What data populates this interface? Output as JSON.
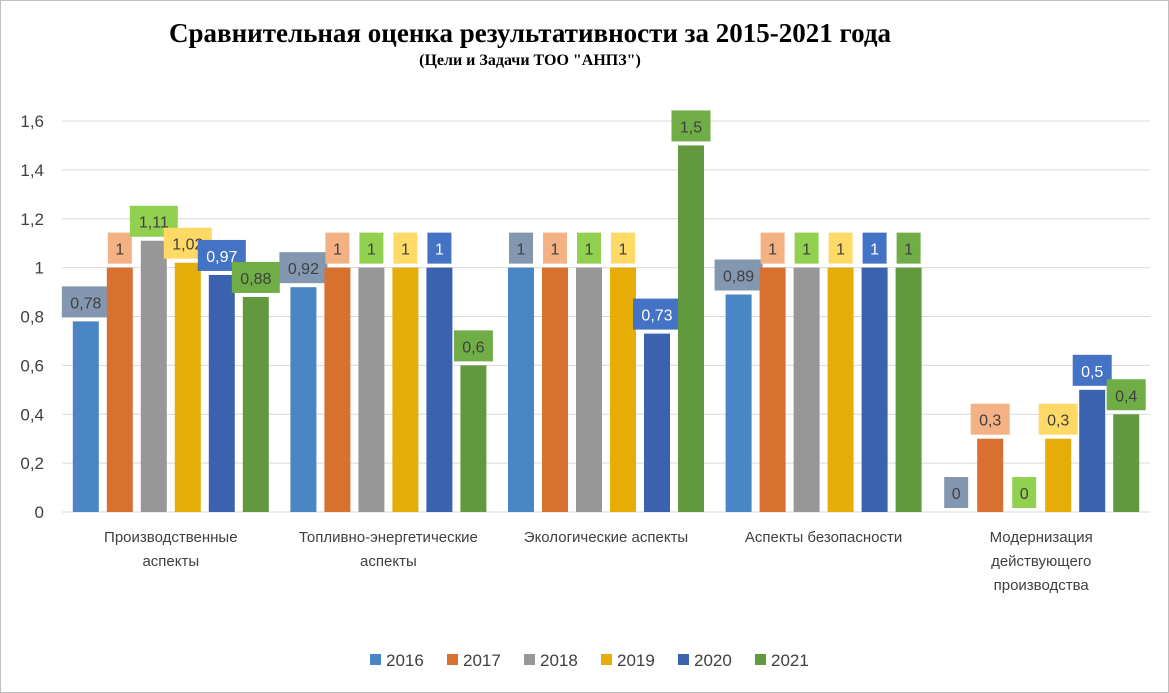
{
  "chart_data": {
    "type": "bar",
    "title": "Сравнительная оценка результативности  за 2015-2021 года",
    "subtitle": "(Цели и Задачи ТОО \"АНПЗ\")",
    "categories": [
      [
        "Производственные",
        "аспекты"
      ],
      [
        "Топливно-энергетические",
        "аспекты"
      ],
      [
        "Экологические аспекты"
      ],
      [
        "Аспекты безопасности"
      ],
      [
        "Модернизация",
        "действующего",
        "производства"
      ]
    ],
    "series": [
      {
        "name": "2016",
        "color": "#4a86c5",
        "values": [
          0.78,
          0.92,
          1,
          0.89,
          0
        ],
        "labels": [
          "0,78",
          "0,92",
          "1",
          "0,89",
          "0"
        ]
      },
      {
        "name": "2017",
        "color": "#d8702f",
        "values": [
          1,
          1,
          1,
          1,
          0.3
        ],
        "labels": [
          "1",
          "1",
          "1",
          "1",
          "0,3"
        ]
      },
      {
        "name": "2018",
        "color": "#979797",
        "values": [
          1.11,
          1,
          1,
          1,
          0
        ],
        "labels": [
          "1,11",
          "1",
          "1",
          "1",
          "0"
        ]
      },
      {
        "name": "2019",
        "color": "#e6ac07",
        "values": [
          1.02,
          1,
          1,
          1,
          0.3
        ],
        "labels": [
          "1,02",
          "1",
          "1",
          "1",
          "0,3"
        ]
      },
      {
        "name": "2020",
        "color": "#3b62ae",
        "values": [
          0.97,
          1,
          0.73,
          1,
          0.5
        ],
        "labels": [
          "0,97",
          "1",
          "0,73",
          "1",
          "0,5"
        ]
      },
      {
        "name": "2021",
        "color": "#62993e",
        "values": [
          0.88,
          0.6,
          1.5,
          1,
          0.4
        ],
        "labels": [
          "0,88",
          "0,6",
          "1,5",
          "1",
          "0,4"
        ]
      }
    ],
    "ylim": [
      0,
      1.6
    ],
    "yticks": [
      0,
      0.2,
      0.4,
      0.6,
      0.8,
      1,
      1.2,
      1.4,
      1.6
    ],
    "ytick_labels": [
      "0",
      "0,2",
      "0,4",
      "0,6",
      "0,8",
      "1",
      "1,2",
      "1,4",
      "1,6"
    ],
    "grid": true,
    "legend_position": "bottom",
    "label_bg_colors": [
      "#8497b0",
      "#f4b183",
      "#92d050",
      "#ffd966",
      "#4472c4",
      "#70ad47"
    ],
    "label_text_colors": [
      "#404040",
      "#404040",
      "#404040",
      "#404040",
      "#ffffff",
      "#404040"
    ]
  }
}
